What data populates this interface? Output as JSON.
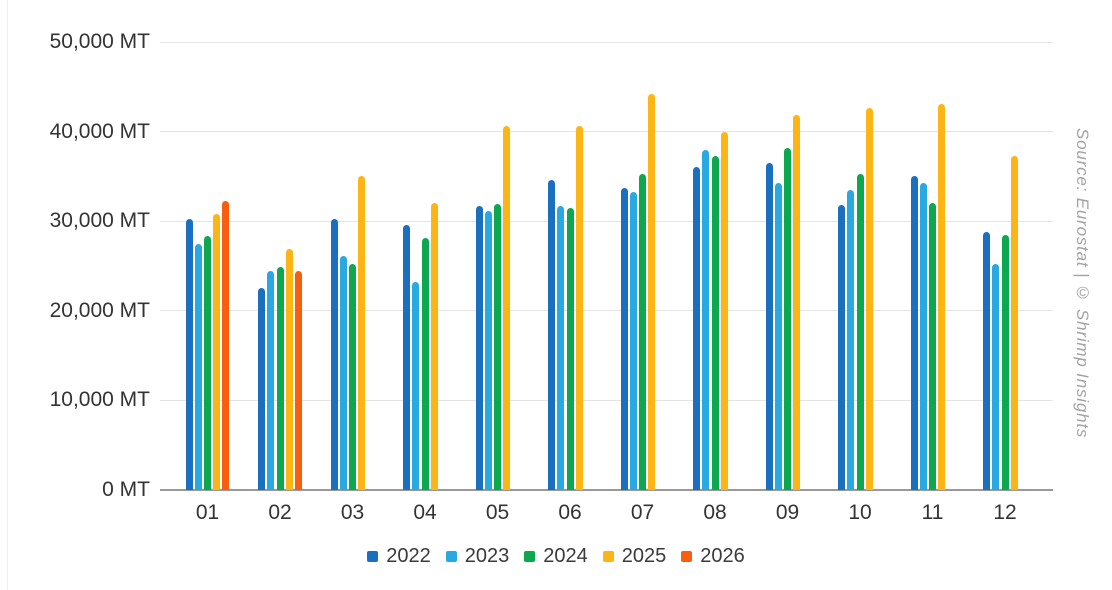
{
  "watermark": {
    "text": "Source: Eurostat | © Shrimp Insights"
  },
  "colors": {
    "grid": "#e4e4e4",
    "axis": "#999999",
    "axis_text": "#333333",
    "watermark_text": "#a3a3a3"
  },
  "chart_data": {
    "type": "bar",
    "title": "",
    "unit": "MT",
    "categories": [
      "01",
      "02",
      "03",
      "04",
      "05",
      "06",
      "07",
      "08",
      "09",
      "10",
      "11",
      "12"
    ],
    "series": [
      {
        "name": "2022",
        "color": "#1B6FBF",
        "values": [
          30200,
          22600,
          30200,
          29600,
          31700,
          34600,
          33700,
          36100,
          36500,
          31800,
          35000,
          28800
        ]
      },
      {
        "name": "2023",
        "color": "#29A9E1",
        "values": [
          27400,
          24400,
          26100,
          23200,
          31100,
          31700,
          33300,
          38000,
          34300,
          33500,
          34300,
          25200
        ]
      },
      {
        "name": "2024",
        "color": "#0BA84F",
        "values": [
          28300,
          24900,
          25200,
          28100,
          31900,
          31500,
          35300,
          37300,
          38200,
          35300,
          32000,
          28500
        ]
      },
      {
        "name": "2025",
        "color": "#FCB515",
        "values": [
          30800,
          26900,
          35100,
          32000,
          40600,
          40600,
          44200,
          40000,
          41900,
          42600,
          43100,
          37300
        ]
      },
      {
        "name": "2026",
        "color": "#F95D0F",
        "values": [
          32200,
          24400,
          null,
          null,
          null,
          null,
          null,
          null,
          null,
          null,
          null,
          null
        ]
      }
    ],
    "y_axis": {
      "tick_values": [
        0,
        10000,
        20000,
        30000,
        40000,
        50000
      ],
      "tick_labels": [
        "0 MT",
        "10,000 MT",
        "20,000 MT",
        "30,000 MT",
        "40,000 MT",
        "50,000 MT"
      ],
      "max": 50000
    },
    "grid": true,
    "legend": {
      "position": "bottom",
      "items": [
        "2022",
        "2023",
        "2024",
        "2025",
        "2026"
      ]
    }
  }
}
